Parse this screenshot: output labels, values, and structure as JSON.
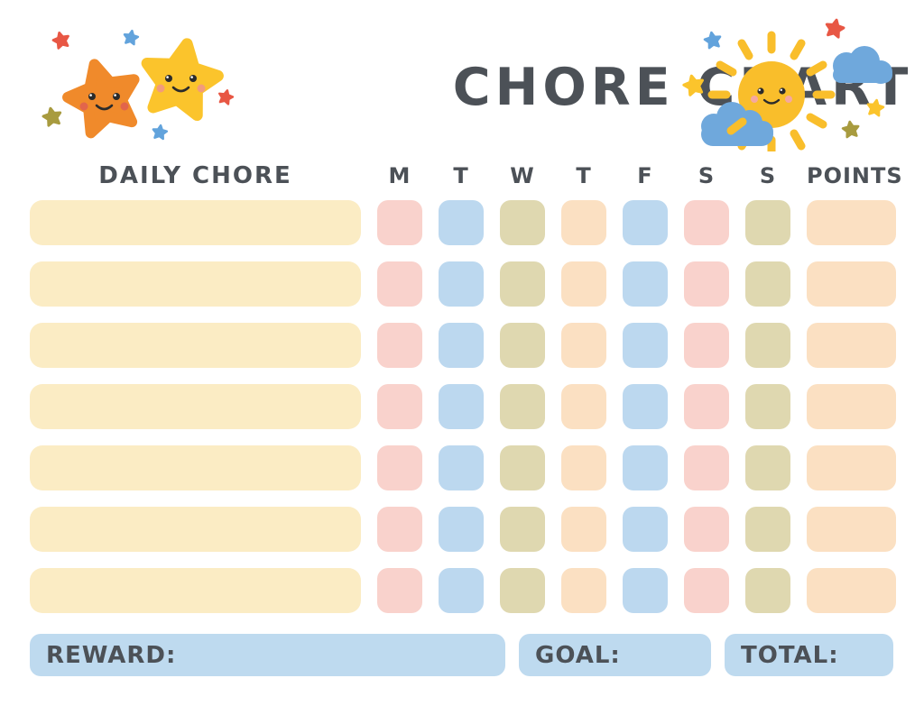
{
  "title": "CHORE CHART",
  "colors": {
    "text": "#4C5157",
    "chore_bar": "#FBECC4",
    "pink": "#F9D2CC",
    "blue": "#BCD8EF",
    "olive": "#DFD8B0",
    "peach": "#FBE0C2",
    "footer_bar": "#BEDAEF",
    "star_orange": "#F08A2B",
    "star_yellow": "#FBC42C",
    "sun_yellow": "#F9BE2B",
    "cloud_blue": "#6FA8DC",
    "accent_red": "#E85744",
    "accent_blue": "#62A3DC",
    "accent_olive": "#A89B3F"
  },
  "header": {
    "chore_column_label": "DAILY CHORE",
    "day_labels": [
      "M",
      "T",
      "W",
      "T",
      "F",
      "S",
      "S"
    ],
    "points_column_label": "POINTS"
  },
  "grid": {
    "row_count": 7,
    "day_cell_colors": [
      "pink",
      "blue",
      "olive",
      "peach",
      "blue",
      "pink",
      "olive"
    ],
    "points_cell_color": "peach",
    "chore_value": "",
    "points_value": ""
  },
  "footer": {
    "reward_label": "REWARD:",
    "goal_label": "GOAL:",
    "total_label": "TOTAL:"
  }
}
